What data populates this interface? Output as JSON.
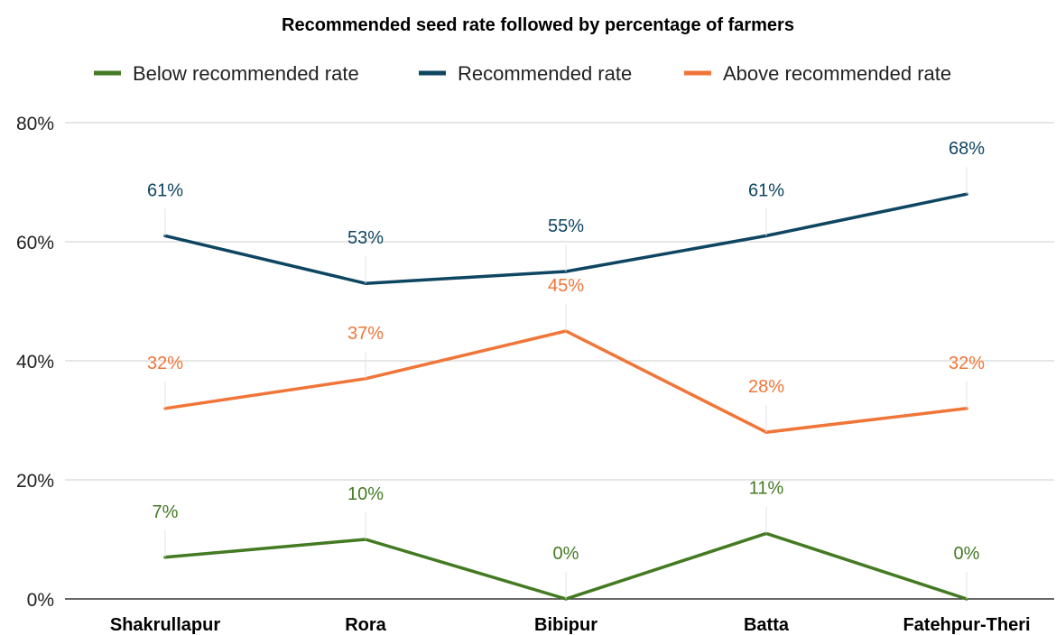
{
  "chart_data": {
    "type": "line",
    "title": "Recommended seed rate followed by percentage of farmers",
    "categories": [
      "Shakrullapur",
      "Rora",
      "Bibipur",
      "Batta",
      "Fatehpur-Theri"
    ],
    "series": [
      {
        "name": "Below recommended rate",
        "color": "#437a22",
        "values": [
          7,
          10,
          0,
          11,
          0
        ],
        "labels": [
          "7%",
          "10%",
          "0%",
          "11%",
          "0%"
        ]
      },
      {
        "name": "Recommended rate",
        "color": "#0e4561",
        "values": [
          61,
          53,
          55,
          61,
          68
        ],
        "labels": [
          "61%",
          "53%",
          "55%",
          "61%",
          "68%"
        ]
      },
      {
        "name": "Above recommended rate",
        "color": "#f07538",
        "values": [
          32,
          37,
          45,
          28,
          32
        ],
        "labels": [
          "32%",
          "37%",
          "45%",
          "28%",
          "32%"
        ]
      }
    ],
    "ylim": [
      0,
      80
    ],
    "yticks": [
      0,
      20,
      40,
      60,
      80
    ],
    "ytick_labels": [
      "0%",
      "20%",
      "40%",
      "60%",
      "80%"
    ],
    "grid": true,
    "legend_position": "top-center"
  }
}
